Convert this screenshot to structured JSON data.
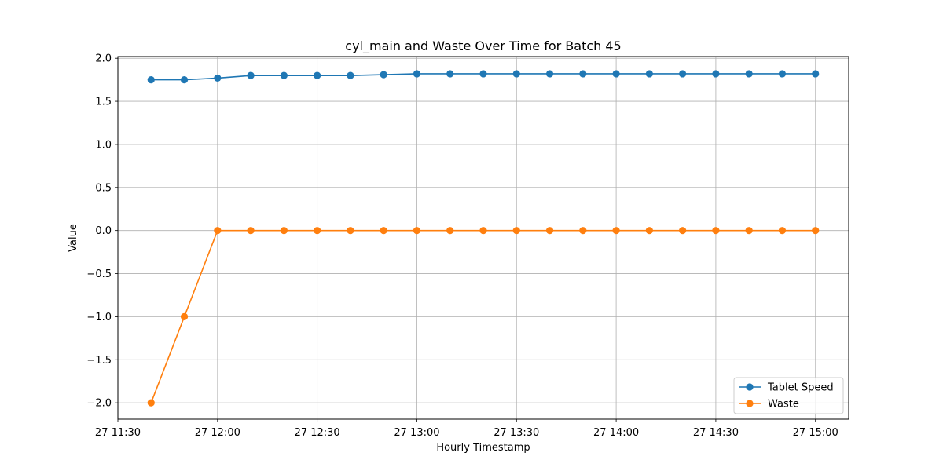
{
  "chart_data": {
    "type": "line",
    "title": "cyl_main and Waste Over Time for Batch 45",
    "xlabel": "Hourly Timestamp",
    "ylabel": "Value",
    "x": [
      "11:40",
      "11:50",
      "12:00",
      "12:10",
      "12:20",
      "12:30",
      "12:40",
      "12:50",
      "13:00",
      "13:10",
      "13:20",
      "13:30",
      "13:40",
      "13:50",
      "14:00",
      "14:10",
      "14:20",
      "14:30",
      "14:40",
      "14:50",
      "15:00"
    ],
    "x_ticks": [
      "27 11:30",
      "27 12:00",
      "27 12:30",
      "27 13:00",
      "27 13:30",
      "27 14:00",
      "27 14:30",
      "27 15:00"
    ],
    "xlim": [
      "11:30",
      "15:10"
    ],
    "y_ticks": [
      "2.0",
      "1.5",
      "1.0",
      "0.5",
      "0.0",
      "−0.5",
      "−1.0",
      "−1.5",
      "−2.0"
    ],
    "ylim": [
      -2.19,
      2.02
    ],
    "grid": true,
    "legend_position": "lower-right",
    "series": [
      {
        "name": "Tablet Speed",
        "color": "#1f77b4",
        "values": [
          1.75,
          1.75,
          1.77,
          1.8,
          1.8,
          1.8,
          1.8,
          1.81,
          1.82,
          1.82,
          1.82,
          1.82,
          1.82,
          1.82,
          1.82,
          1.82,
          1.82,
          1.82,
          1.82,
          1.82,
          1.82
        ]
      },
      {
        "name": "Waste",
        "color": "#ff7f0e",
        "values": [
          -2.0,
          -1.0,
          0,
          0,
          0,
          0,
          0,
          0,
          0,
          0,
          0,
          0,
          0,
          0,
          0,
          0,
          0,
          0,
          0,
          0,
          0
        ]
      }
    ]
  }
}
